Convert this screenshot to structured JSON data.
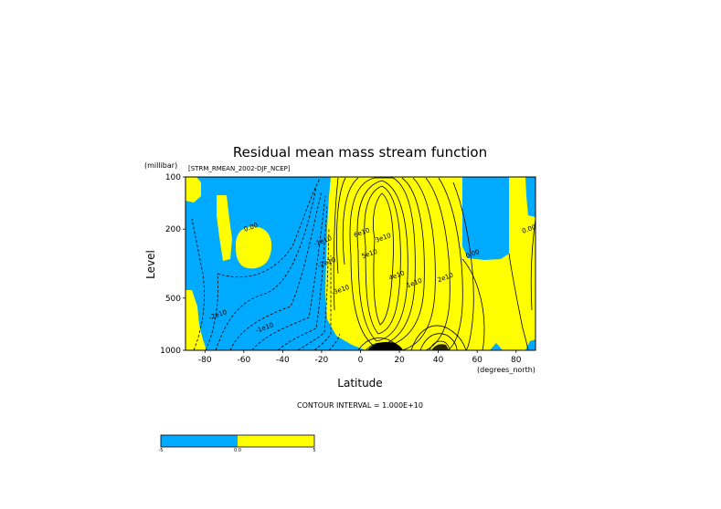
{
  "chart_data": {
    "type": "contour",
    "title": "Residual mean mass stream function",
    "dataset_label": "[STRM_RMEAN_2002-DJF_NCEP]",
    "xlabel": "Latitude",
    "x_units": "(degrees_north)",
    "ylabel": "Level",
    "y_units": "(millibar)",
    "x_ticks": [
      "-80",
      "-60",
      "-40",
      "-20",
      "0",
      "20",
      "40",
      "60",
      "80"
    ],
    "y_ticks": [
      "100",
      "200",
      "500",
      "1000"
    ],
    "xlim": [
      -90,
      90
    ],
    "ylim": [
      1000,
      100
    ],
    "y_scale": "log",
    "footer": "CONTOUR INTERVAL = 1.000E+10",
    "colorbar": {
      "colors": [
        "#00aaff",
        "#ffff00"
      ],
      "labels": [
        "-5",
        "0.0",
        "5"
      ]
    },
    "contour_labels": [
      {
        "text": "0.00",
        "lat": -56,
        "p": 200
      },
      {
        "text": "0.00",
        "lat": 58,
        "p": 285
      },
      {
        "text": "0.00",
        "lat": 87,
        "p": 205
      },
      {
        "text": "-1e10",
        "lat": -19,
        "p": 240
      },
      {
        "text": "-2e10",
        "lat": -17,
        "p": 320
      },
      {
        "text": "-3e10",
        "lat": -10,
        "p": 460
      },
      {
        "text": "-2e10",
        "lat": -73,
        "p": 640
      },
      {
        "text": "-1e10",
        "lat": -49,
        "p": 760
      },
      {
        "text": "6e10",
        "lat": 1,
        "p": 215
      },
      {
        "text": "5e10",
        "lat": 5,
        "p": 285
      },
      {
        "text": "3e10",
        "lat": 12,
        "p": 230
      },
      {
        "text": "4e10",
        "lat": 19,
        "p": 380
      },
      {
        "text": "1e10",
        "lat": 28,
        "p": 420
      },
      {
        "text": "2e10",
        "lat": 44,
        "p": 390
      }
    ],
    "colors": {
      "negative": "#00aaff",
      "positive": "#ffff00"
    }
  }
}
